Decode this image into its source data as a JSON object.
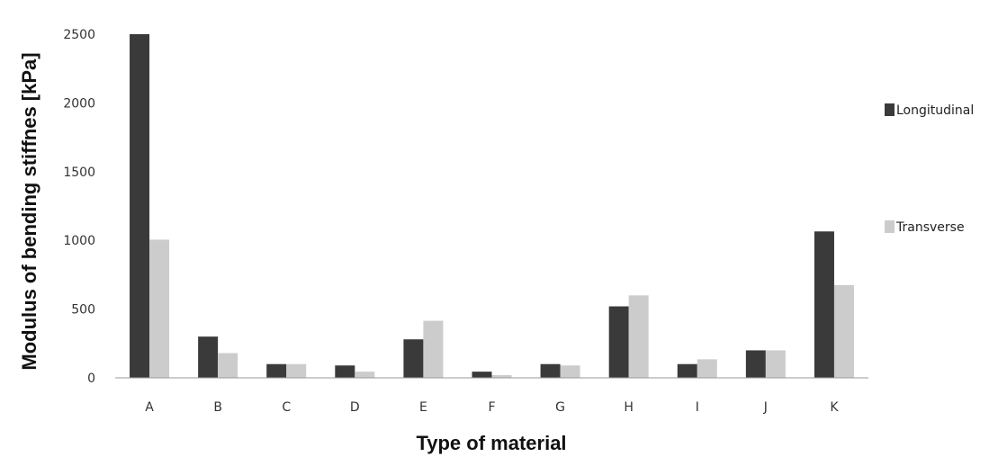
{
  "chart_data": {
    "type": "bar",
    "xlabel": "Type of material",
    "ylabel": "Modulus of bending stiffnes [kPa]",
    "categories": [
      "A",
      "B",
      "C",
      "D",
      "E",
      "F",
      "G",
      "H",
      "I",
      "J",
      "K"
    ],
    "series": [
      {
        "name": "Longitudinal",
        "color": "#3a3a3a",
        "values": [
          2500,
          300,
          100,
          90,
          280,
          45,
          100,
          520,
          100,
          200,
          1065
        ]
      },
      {
        "name": "Transverse",
        "color": "#cccccc",
        "values": [
          1005,
          180,
          100,
          45,
          415,
          20,
          90,
          600,
          135,
          200,
          675
        ]
      }
    ],
    "yticks": [
      "0",
      "500",
      "1000",
      "1500",
      "2000",
      "2500"
    ],
    "ylim": [
      0,
      2500
    ],
    "grid": false,
    "legend_position": "right"
  }
}
